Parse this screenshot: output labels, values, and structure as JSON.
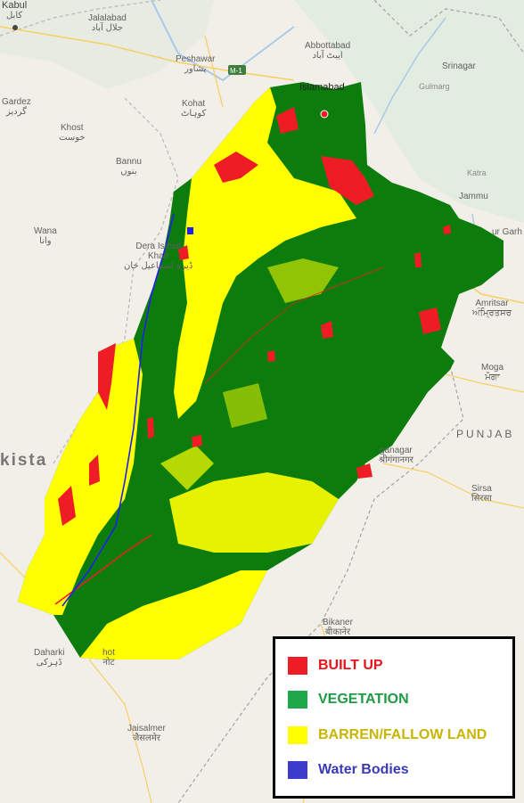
{
  "places": {
    "kabul": "Kabul",
    "kabul_native": "کابل",
    "jalalabad": "Jalalabad",
    "jalalabad_native": "جلال آباد",
    "peshawar": "Peshawar",
    "peshawar_native": "پشاور",
    "abbottabad": "Abbottabad",
    "abbottabad_native": "ایبٹ آباد",
    "srinagar": "Srinagar",
    "islamabad": "Islamabad",
    "gardez": "Gardez",
    "gardez_native": "گردېز",
    "kohat": "Kohat",
    "kohat_native": "کوہاٹ",
    "khost": "Khost",
    "khost_native": "خوست",
    "gulmarg": "Gulmarg",
    "bannu": "Bannu",
    "bannu_native": "بنوں",
    "katra": "Katra",
    "jammu": "Jammu",
    "wana": "Wana",
    "wana_native": "وانا",
    "dera_ismail_khan_1": "Dera Ismail",
    "dera_ismail_khan_2": "Khan",
    "dera_ismail_khan_native": "ڈیرہ اسماعیل خان",
    "amritsar": "Amritsar",
    "amritsar_native": "ਅੰਮ੍ਰਿਤਸਰ",
    "gurdaspur": "ur Garh",
    "moga": "Moga",
    "moga_native": "ਮੋਗਾ",
    "punjab": "PUNJAB",
    "pakistan": "kista",
    "ganganagar": "ganagar",
    "ganganagar_native": "श्रीगंगानगर",
    "sirsa": "Sirsa",
    "sirsa_native": "सिरसा",
    "bikaner": "Bikaner",
    "bikaner_native": "बीकानेर",
    "daharki": "Daharki",
    "daharki_native": "ڈہرکی",
    "ghotki": "hot",
    "ghotki_native": "नोट",
    "jaisalmer": "Jaisalmer",
    "jaisalmer_native": "जैसलमेर",
    "motorway": "M-1"
  },
  "legend": {
    "items": [
      {
        "label": "BUILT UP",
        "color": "#ee1c24",
        "text_color": "#e8131b"
      },
      {
        "label": "VEGETATION",
        "color": "#1fa84a",
        "text_color": "#1c9a44"
      },
      {
        "label": "BARREN/FALLOW LAND",
        "color": "#ffff00",
        "text_color": "#c9b400"
      },
      {
        "label": "Water Bodies",
        "color": "#3c3ccc",
        "text_color": "#3a3ab8"
      }
    ]
  },
  "colors": {
    "base_map": "#f2efe9",
    "vegetation": "#0c7d0c",
    "barren": "#ffff00",
    "built_up": "#ee1c24",
    "water": "#2020ee"
  }
}
